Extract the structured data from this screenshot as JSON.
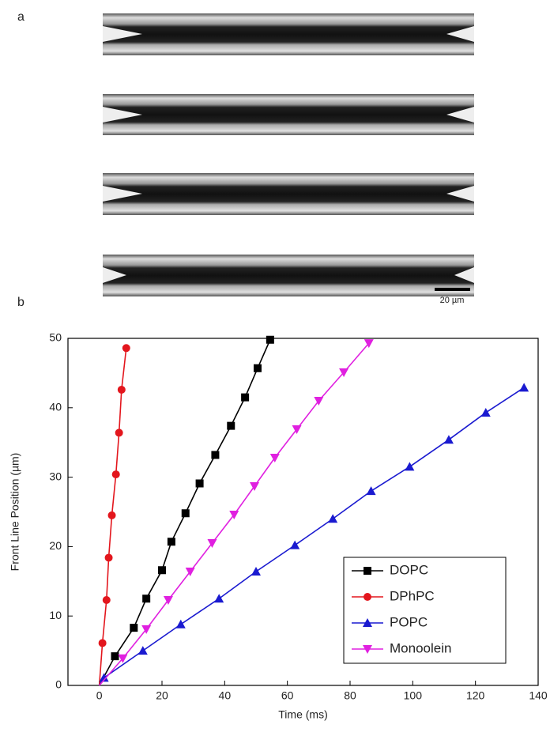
{
  "panel_a": {
    "label": "a",
    "scale_bar": "20 µm"
  },
  "chart_data": {
    "type": "line",
    "label": "b",
    "x_label": "Time (ms)",
    "y_label": "Front Line Position (µm)",
    "xlim": [
      -10,
      140
    ],
    "ylim": [
      0,
      50
    ],
    "xticks": [
      0,
      20,
      40,
      60,
      80,
      100,
      120,
      140
    ],
    "yticks": [
      0,
      10,
      20,
      30,
      40,
      50
    ],
    "legend": "lower right",
    "series": [
      {
        "name": "DOPC",
        "color": "#000000",
        "marker": "square",
        "x": [
          0,
          5,
          11,
          15,
          20,
          23,
          27.5,
          32,
          37,
          42,
          46.5,
          50.5,
          54.5
        ],
        "values": [
          0,
          4.2,
          8.3,
          12.5,
          16.6,
          20.7,
          24.8,
          29.1,
          33.2,
          37.4,
          41.5,
          45.7,
          49.8
        ]
      },
      {
        "name": "DPhPC",
        "color": "#e3161d",
        "marker": "circle",
        "x": [
          0,
          1,
          2.3,
          3,
          4,
          5.3,
          6.3,
          7.1,
          8.6
        ],
        "values": [
          0,
          6.1,
          12.3,
          18.4,
          24.5,
          30.4,
          36.4,
          42.6,
          48.6
        ]
      },
      {
        "name": "POPC",
        "color": "#1a1ad0",
        "marker": "triangle-up",
        "x": [
          0,
          1.5,
          13.9,
          26,
          38.2,
          50,
          62.4,
          74.5,
          86.7,
          99,
          111.5,
          123.3,
          135.5
        ],
        "values": [
          0,
          1.1,
          5,
          8.8,
          12.5,
          16.4,
          20.2,
          24,
          28,
          31.5,
          35.4,
          39.3,
          42.9
        ]
      },
      {
        "name": "Monoolein",
        "color": "#e020e0",
        "marker": "triangle-down",
        "x": [
          0,
          7.5,
          15,
          22,
          29,
          36,
          43,
          49.5,
          56,
          63,
          70,
          78,
          86
        ],
        "values": [
          0,
          3.9,
          8.1,
          12.3,
          16.4,
          20.5,
          24.6,
          28.7,
          32.8,
          36.9,
          41,
          45.1,
          49.3
        ]
      }
    ]
  }
}
